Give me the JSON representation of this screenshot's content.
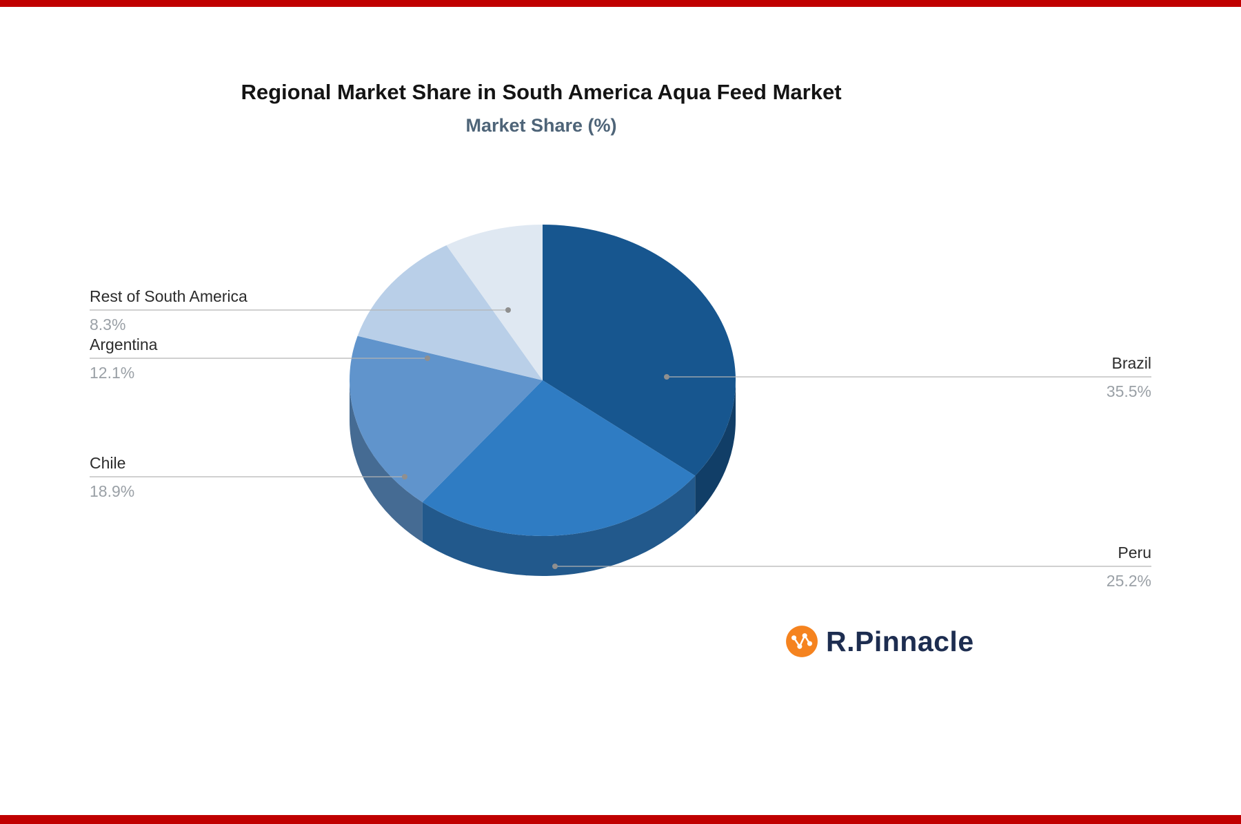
{
  "header": {
    "title": "Regional Market Share in South America Aqua Feed Market",
    "subtitle": "Market Share (%)"
  },
  "logo": {
    "text": "R.Pinnacle"
  },
  "accent": {
    "top_bar_color": "#c00000",
    "bottom_bar_color": "#c00000",
    "logo_orange": "#f5831f",
    "logo_navy": "#1d2d50",
    "leader_line": "#b3b3b3",
    "leader_dot": "#8f8f8f"
  },
  "chart_data": {
    "type": "pie",
    "title": "Regional Market Share in South America Aqua Feed Market",
    "subtitle": "Market Share (%)",
    "categories": [
      "Brazil",
      "Peru",
      "Chile",
      "Argentina",
      "Rest of South America"
    ],
    "values": [
      35.5,
      25.2,
      18.9,
      12.1,
      8.3
    ],
    "labels": [
      "35.5%",
      "25.2%",
      "18.9%",
      "12.1%",
      "8.3%"
    ],
    "colors": [
      "#17568f",
      "#2f7cc3",
      "#6094cc",
      "#b9cfe8",
      "#dfe8f2"
    ],
    "start_angle_deg": 0,
    "direction": "clockwise",
    "effect": "3d",
    "legend": "none",
    "label_style": "leader-lines"
  }
}
